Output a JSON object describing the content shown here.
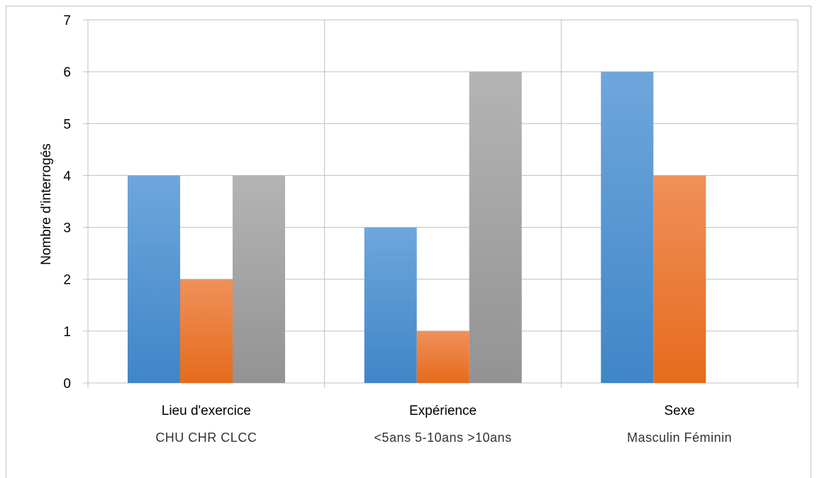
{
  "chart_data": {
    "type": "bar",
    "ylabel": "Nombre d'interrogés",
    "ylim": [
      0,
      7
    ],
    "yticks": [
      "0",
      "1",
      "2",
      "3",
      "4",
      "5",
      "6",
      "7"
    ],
    "grid": "on",
    "groups": [
      {
        "name": "Lieu d'exercice",
        "sublabel": "CHU  CHR  CLCC",
        "categories": [
          "CHU",
          "CHR",
          "CLCC"
        ],
        "values": [
          4,
          2,
          4
        ]
      },
      {
        "name": "Expérience",
        "sublabel": "<5ans  5-10ans  >10ans",
        "categories": [
          "<5ans",
          "5-10ans",
          ">10ans"
        ],
        "values": [
          3,
          1,
          6
        ]
      },
      {
        "name": "Sexe",
        "sublabel": "Masculin  Féminin",
        "categories": [
          "Masculin",
          "Féminin"
        ],
        "values": [
          6,
          4
        ]
      }
    ],
    "colors": [
      "#5b9bd5",
      "#ed7d31",
      "#a5a5a5"
    ]
  }
}
